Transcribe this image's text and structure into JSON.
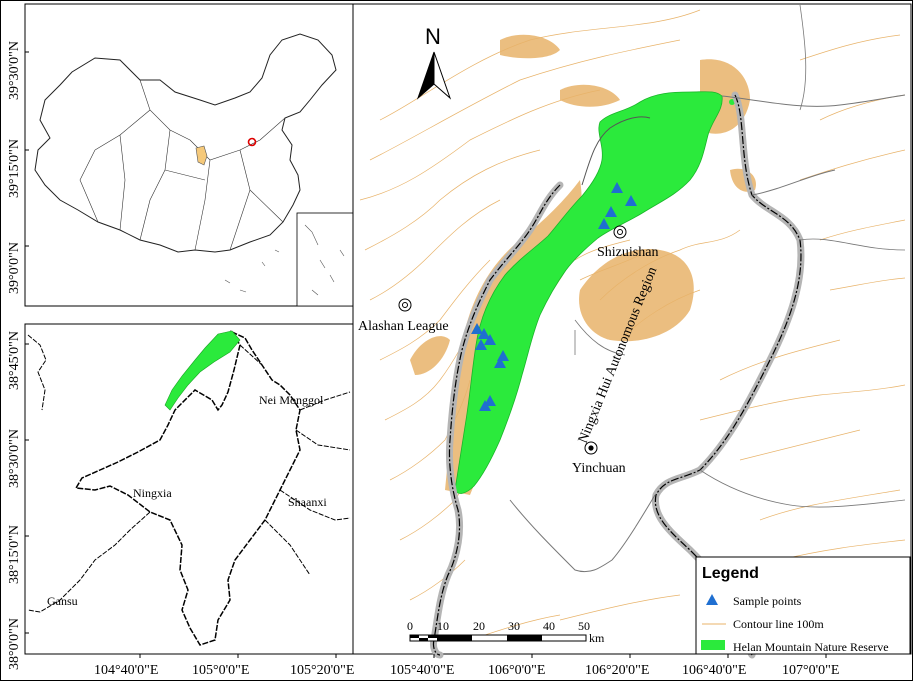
{
  "north_label": "N",
  "lat_ticks": [
    "39°30'0\"N",
    "39°15'0\"N",
    "39°0'0\"N",
    "38°45'0\"N",
    "38°30'0\"N",
    "38°15'0\"N",
    "38°0'0\"N"
  ],
  "lon_ticks": [
    "104°40'0\"E",
    "105°0'0\"E",
    "105°20'0\"E",
    "105°40'0\"E",
    "106°0'0\"E",
    "106°20'0\"E",
    "106°40'0\"E",
    "107°0'0\"E"
  ],
  "places": {
    "shizuishan": "Shizuishan",
    "alashan": "Alashan League",
    "yinchuan": "Yinchuan",
    "region": "Ningxia Hui Autonomous Region"
  },
  "inset_labels": {
    "nei_monggol": "Nei Monggol",
    "ningxia": "Ningxia",
    "shaanxi": "Shaanxi",
    "gansu": "Gansu"
  },
  "scale_bar": {
    "ticks": [
      "0",
      "10",
      "20",
      "30",
      "40",
      "50"
    ],
    "unit": "km"
  },
  "legend": {
    "title": "Legend",
    "items": [
      {
        "label": "Sample points",
        "color": "#1f6fd1",
        "symbol": "triangle"
      },
      {
        "label": "Contour line 100m",
        "color": "#e8b36a",
        "symbol": "line"
      },
      {
        "label": "Helan Mountain Nature Reserve",
        "color": "#2bea3c",
        "symbol": "patch"
      }
    ]
  },
  "colors": {
    "reserve": "#2bea3c",
    "contour": "#e8b36a",
    "sample": "#1f6fd1",
    "boundary": "#8a8a8a"
  }
}
